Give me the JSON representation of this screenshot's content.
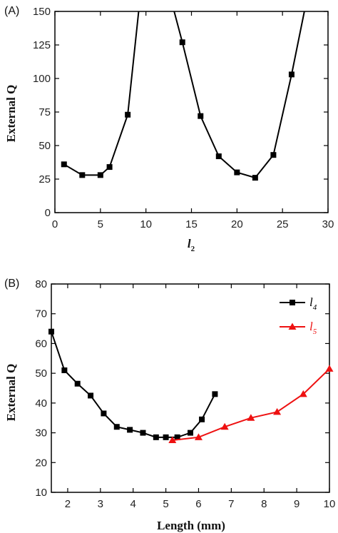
{
  "chart_data": [
    {
      "panel_label": "(A)",
      "type": "line",
      "xlabel_main": "l",
      "xlabel_sub": "2",
      "ylabel": "External Q",
      "xlim": [
        0,
        30
      ],
      "ylim": [
        0,
        150
      ],
      "xticks": [
        0,
        5,
        10,
        15,
        20,
        25,
        30
      ],
      "yticks": [
        0,
        25,
        50,
        75,
        100,
        125,
        150
      ],
      "series": [
        {
          "color": "#000000",
          "marker": "square",
          "points": [
            [
              1,
              36
            ],
            [
              3,
              28
            ],
            [
              5,
              28
            ],
            [
              6,
              34
            ],
            [
              8,
              73
            ],
            [
              14,
              127
            ],
            [
              16,
              72
            ],
            [
              18,
              42
            ],
            [
              20,
              30
            ],
            [
              22,
              26
            ],
            [
              24,
              43
            ],
            [
              26,
              103
            ]
          ],
          "line": [
            [
              1,
              36
            ],
            [
              3,
              28
            ],
            [
              5,
              28
            ],
            [
              6,
              34
            ],
            [
              8,
              73
            ],
            [
              9.2,
              150
            ],
            null,
            [
              13.1,
              150
            ],
            [
              14,
              127
            ],
            [
              16,
              72
            ],
            [
              18,
              42
            ],
            [
              20,
              30
            ],
            [
              22,
              26
            ],
            [
              24,
              43
            ],
            [
              26,
              103
            ],
            [
              27.4,
              150
            ]
          ]
        }
      ]
    },
    {
      "panel_label": "(B)",
      "type": "line",
      "xlabel": "Length (mm)",
      "ylabel": "External Q",
      "xlim": [
        1.5,
        10
      ],
      "ylim": [
        10,
        80
      ],
      "xticks": [
        2,
        3,
        4,
        5,
        6,
        7,
        8,
        9,
        10
      ],
      "yticks": [
        10,
        20,
        30,
        40,
        50,
        60,
        70,
        80
      ],
      "legend_position": "top-right",
      "series": [
        {
          "name_main": "l",
          "name_sub": "4",
          "color": "#000000",
          "marker": "square",
          "points": [
            [
              1.5,
              64
            ],
            [
              1.9,
              51
            ],
            [
              2.3,
              46.5
            ],
            [
              2.7,
              42.5
            ],
            [
              3.1,
              36.5
            ],
            [
              3.5,
              32
            ],
            [
              3.9,
              31
            ],
            [
              4.3,
              30
            ],
            [
              4.7,
              28.5
            ],
            [
              5.0,
              28.5
            ],
            [
              5.35,
              28.5
            ],
            [
              5.75,
              30
            ],
            [
              6.1,
              34.5
            ],
            [
              6.5,
              43
            ]
          ]
        },
        {
          "name_main": "l",
          "name_sub": "5",
          "color": "#ee1111",
          "marker": "triangle",
          "points": [
            [
              5.2,
              27.5
            ],
            [
              6.0,
              28.5
            ],
            [
              6.8,
              32
            ],
            [
              7.6,
              35
            ],
            [
              8.4,
              37
            ],
            [
              9.2,
              43
            ],
            [
              10,
              51.5
            ]
          ]
        }
      ]
    }
  ]
}
